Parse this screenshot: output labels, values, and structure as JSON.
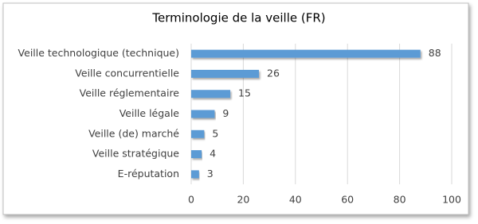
{
  "chart_data": {
    "type": "barh",
    "title": "Terminologie de la veille (FR)",
    "categories": [
      "Veille technologique (technique)",
      "Veille concurrentielle",
      "Veille réglementaire",
      "Veille légale",
      "Veille (de) marché",
      "Veille stratégique",
      "E-réputation"
    ],
    "values": [
      88,
      26,
      15,
      9,
      5,
      4,
      3
    ],
    "color": "#5b9bd5",
    "xlim": [
      0,
      100
    ],
    "xticks": [
      0,
      20,
      40,
      60,
      80,
      100
    ],
    "grid": true
  }
}
